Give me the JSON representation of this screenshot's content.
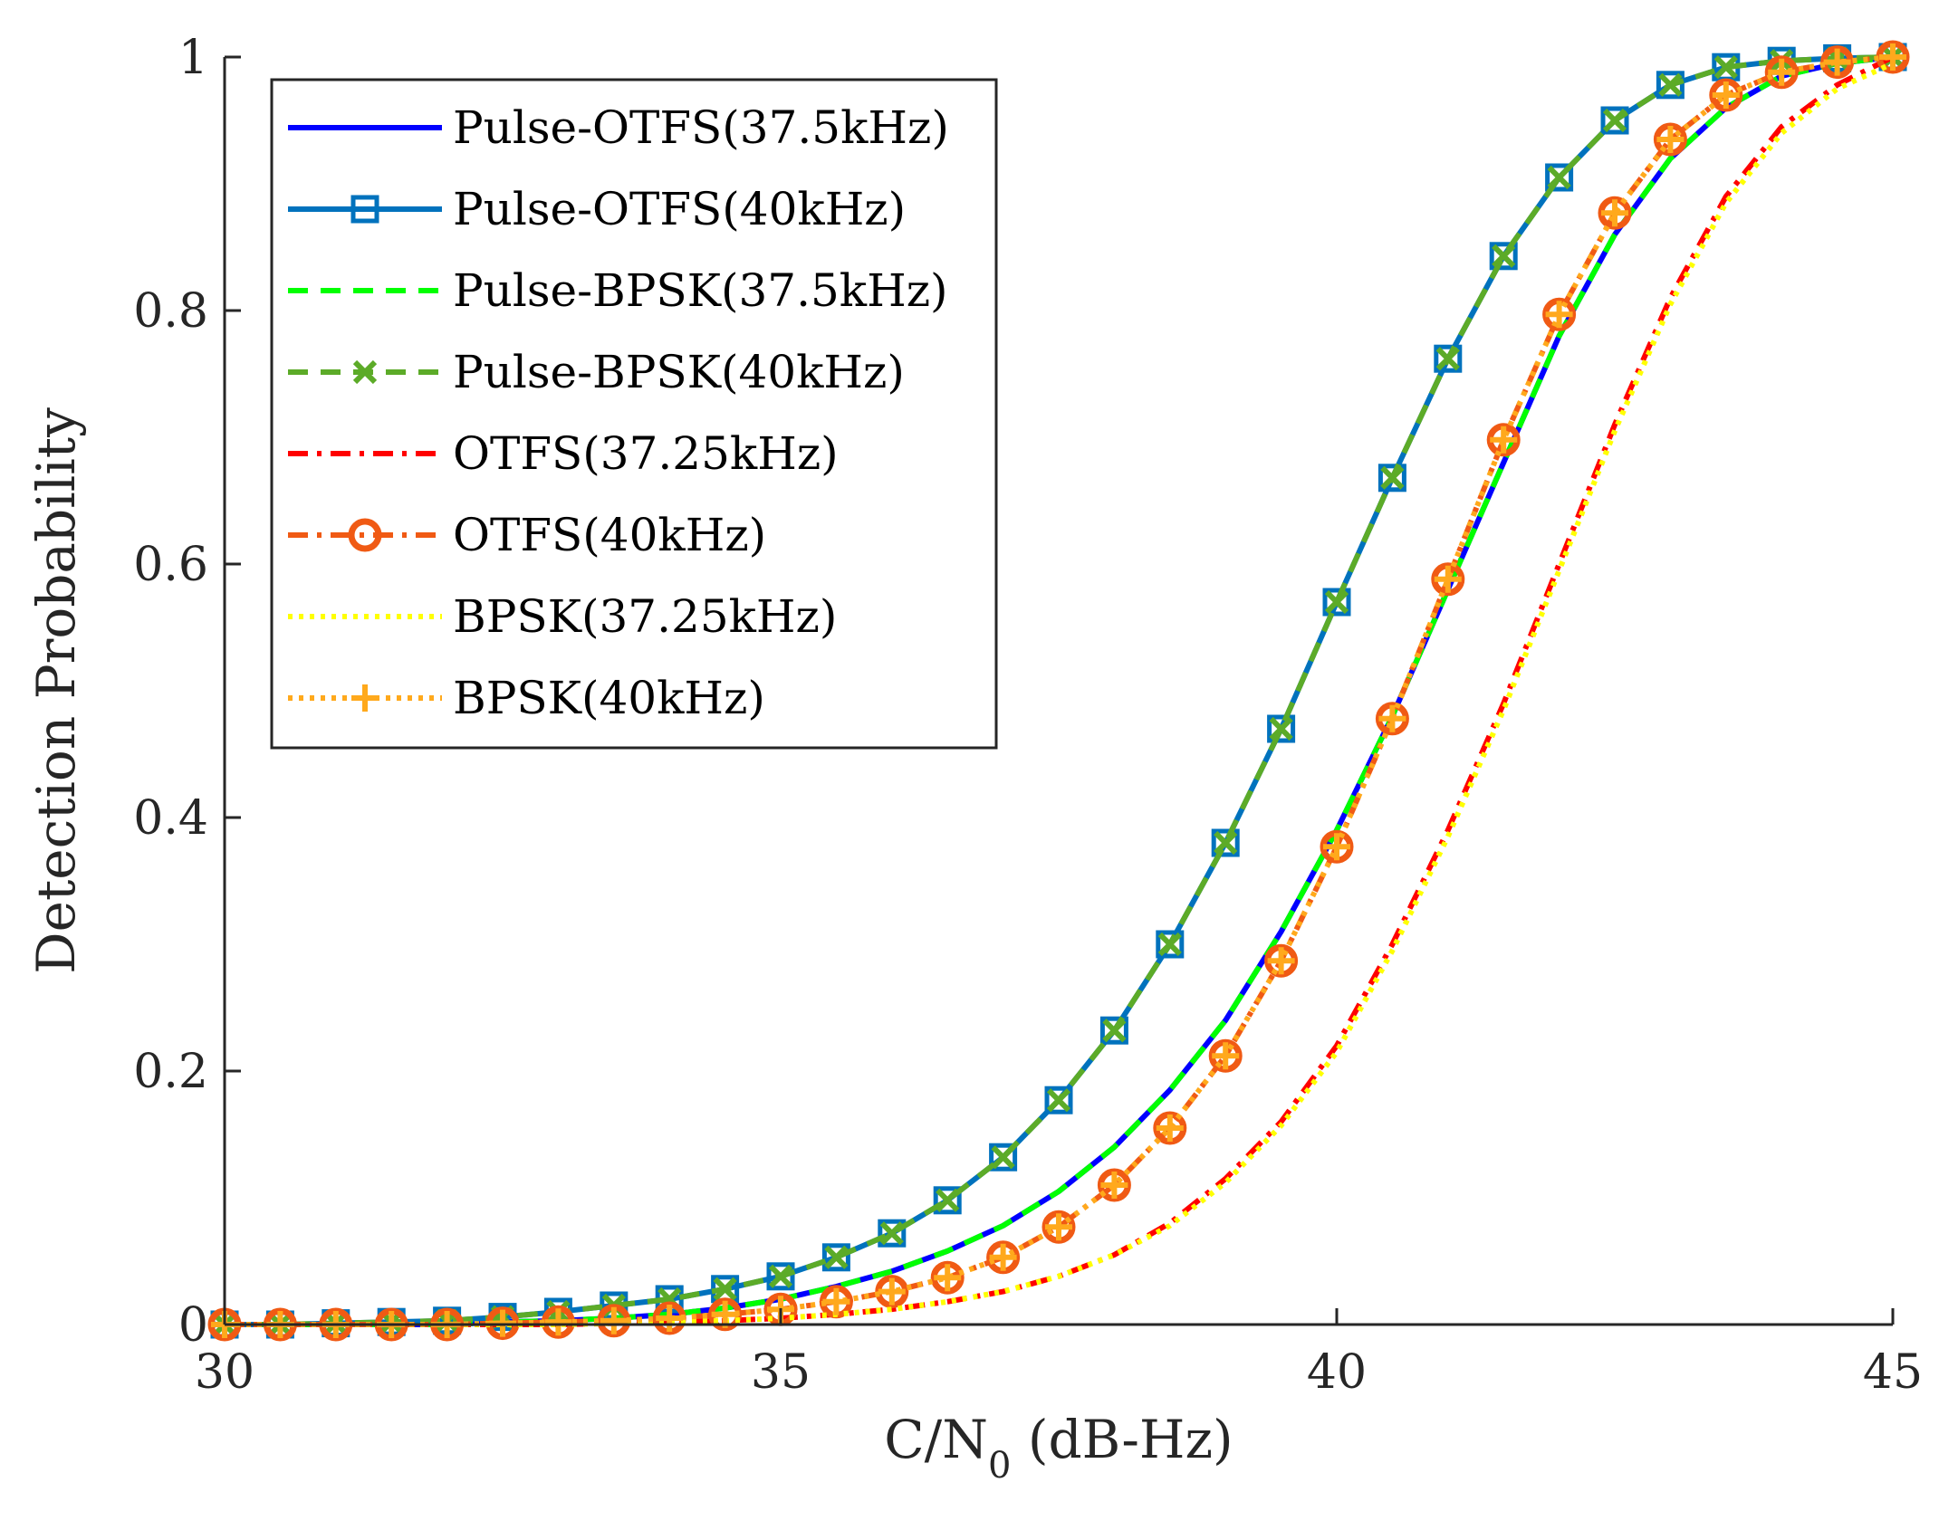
{
  "chart_data": {
    "type": "line",
    "title": "",
    "xlabel_main": "C/N",
    "xlabel_sub": "0",
    "xlabel_unit": " (dB-Hz)",
    "ylabel": "Detection Probability",
    "xlim": [
      30,
      45
    ],
    "ylim": [
      0,
      1
    ],
    "xticks": [
      30,
      35,
      40,
      45
    ],
    "xtick_labels": [
      "30",
      "35",
      "40",
      "45"
    ],
    "yticks": [
      0,
      0.2,
      0.4,
      0.6,
      0.8,
      1
    ],
    "ytick_labels": [
      "0",
      "0.2",
      "0.4",
      "0.6",
      "0.8",
      "1"
    ],
    "grid": false,
    "legend_position": "top-left",
    "x": [
      30,
      30.5,
      31,
      31.5,
      32,
      32.5,
      33,
      33.5,
      34,
      34.5,
      35,
      35.5,
      36,
      36.5,
      37,
      37.5,
      38,
      38.5,
      39,
      39.5,
      40,
      40.5,
      41,
      41.5,
      42,
      42.5,
      43,
      43.5,
      44,
      44.5,
      45
    ],
    "series": [
      {
        "name": "Pulse-OTFS(37.5kHz)",
        "color": "#0000ff",
        "dash": "solid",
        "marker": "none",
        "values": [
          0,
          0,
          0,
          0,
          0,
          0.002,
          0.003,
          0.005,
          0.008,
          0.013,
          0.02,
          0.03,
          0.042,
          0.058,
          0.078,
          0.105,
          0.14,
          0.185,
          0.24,
          0.31,
          0.39,
          0.48,
          0.58,
          0.68,
          0.78,
          0.86,
          0.92,
          0.96,
          0.985,
          0.995,
          1
        ]
      },
      {
        "name": "Pulse-OTFS(40kHz)",
        "color": "#0072bd",
        "dash": "solid",
        "marker": "square",
        "values": [
          0,
          0,
          0.001,
          0.002,
          0.003,
          0.006,
          0.01,
          0.015,
          0.02,
          0.028,
          0.038,
          0.053,
          0.072,
          0.098,
          0.132,
          0.177,
          0.232,
          0.3,
          0.38,
          0.47,
          0.57,
          0.668,
          0.762,
          0.843,
          0.905,
          0.95,
          0.978,
          0.992,
          0.997,
          0.999,
          1
        ]
      },
      {
        "name": "Pulse-BPSK(37.5kHz)",
        "color": "#00ff00",
        "dash": "dashed",
        "marker": "none",
        "values": [
          0,
          0,
          0,
          0,
          0,
          0.002,
          0.003,
          0.005,
          0.008,
          0.013,
          0.02,
          0.03,
          0.042,
          0.058,
          0.078,
          0.105,
          0.14,
          0.185,
          0.24,
          0.31,
          0.39,
          0.48,
          0.58,
          0.68,
          0.78,
          0.86,
          0.92,
          0.96,
          0.985,
          0.995,
          1
        ]
      },
      {
        "name": "Pulse-BPSK(40kHz)",
        "color": "#5cab28",
        "dash": "dashed",
        "marker": "x",
        "values": [
          0,
          0,
          0.001,
          0.002,
          0.003,
          0.006,
          0.01,
          0.015,
          0.02,
          0.028,
          0.038,
          0.053,
          0.072,
          0.098,
          0.132,
          0.177,
          0.232,
          0.3,
          0.38,
          0.47,
          0.57,
          0.668,
          0.762,
          0.843,
          0.905,
          0.95,
          0.978,
          0.992,
          0.997,
          0.999,
          1
        ]
      },
      {
        "name": "OTFS(37.25kHz)",
        "color": "#ff0000",
        "dash": "dashdot",
        "marker": "none",
        "values": [
          0,
          0,
          0,
          0,
          0,
          0,
          0,
          0.001,
          0.002,
          0.003,
          0.005,
          0.008,
          0.012,
          0.018,
          0.026,
          0.038,
          0.055,
          0.08,
          0.115,
          0.16,
          0.22,
          0.3,
          0.39,
          0.49,
          0.6,
          0.71,
          0.81,
          0.89,
          0.945,
          0.978,
          1
        ]
      },
      {
        "name": "OTFS(40kHz)",
        "color": "#f05a14",
        "dash": "dashdot",
        "marker": "circle",
        "values": [
          0,
          0,
          0,
          0,
          0,
          0.001,
          0.002,
          0.003,
          0.005,
          0.008,
          0.012,
          0.018,
          0.026,
          0.037,
          0.053,
          0.077,
          0.11,
          0.155,
          0.212,
          0.287,
          0.377,
          0.478,
          0.588,
          0.698,
          0.797,
          0.877,
          0.935,
          0.97,
          0.988,
          0.996,
          1
        ]
      },
      {
        "name": "BPSK(37.25kHz)",
        "color": "#ffff00",
        "dash": "dotted",
        "marker": "none",
        "values": [
          0,
          0,
          0,
          0,
          0,
          0,
          0,
          0.001,
          0.002,
          0.003,
          0.005,
          0.008,
          0.012,
          0.018,
          0.026,
          0.038,
          0.055,
          0.078,
          0.112,
          0.157,
          0.215,
          0.295,
          0.385,
          0.485,
          0.595,
          0.705,
          0.805,
          0.885,
          0.94,
          0.975,
          0.995
        ]
      },
      {
        "name": "BPSK(40kHz)",
        "color": "#ffa91c",
        "dash": "dotted",
        "marker": "plus",
        "values": [
          0,
          0,
          0,
          0,
          0,
          0.001,
          0.002,
          0.003,
          0.005,
          0.008,
          0.012,
          0.018,
          0.026,
          0.037,
          0.053,
          0.077,
          0.11,
          0.155,
          0.212,
          0.287,
          0.377,
          0.478,
          0.588,
          0.698,
          0.797,
          0.877,
          0.935,
          0.97,
          0.988,
          0.996,
          1
        ]
      }
    ]
  }
}
